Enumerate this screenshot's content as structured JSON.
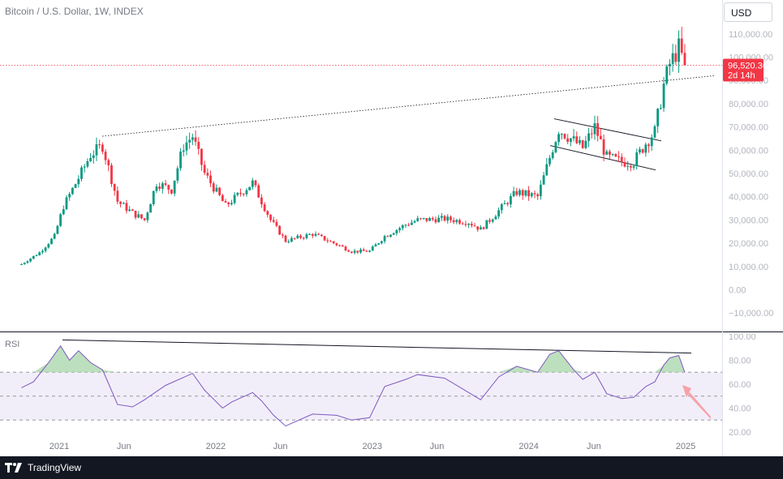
{
  "header": {
    "title": "Bitcoin / U.S. Dollar, 1W, INDEX",
    "currency": "USD"
  },
  "price_label": {
    "price": "96,520.36",
    "countdown": "2d 14h"
  },
  "rsi_label": "RSI",
  "footer": {
    "brand": "TradingView"
  },
  "colors": {
    "up": "#089981",
    "down": "#f23645",
    "rsi_line": "#7e57c2",
    "rsi_band": "#ede7f6",
    "price_line": "#f23645",
    "arrow": "#f7a1a9"
  },
  "chart_data": [
    {
      "type": "candlestick",
      "title": "Bitcoin / U.S. Dollar, 1W, INDEX",
      "x_ticks": [
        "2021",
        "Jun",
        "2022",
        "Jun",
        "2023",
        "Jun",
        "2024",
        "Jun",
        "2025"
      ],
      "y_ticks": [
        "110,000.00",
        "100,000.00",
        "90,000.00",
        "80,000.00",
        "70,000.00",
        "60,000.00",
        "50,000.00",
        "40,000.00",
        "30,000.00",
        "20,000.00",
        "10,000.00",
        "0.00",
        "−10,000.00"
      ],
      "ylim": [
        -10000,
        110000
      ],
      "last_price": 96520.36,
      "anchors": [
        [
          "2020-10-05",
          11000
        ],
        [
          "2020-11-16",
          16000
        ],
        [
          "2020-12-21",
          23000
        ],
        [
          "2021-01-11",
          36000
        ],
        [
          "2021-02-15",
          48000
        ],
        [
          "2021-03-15",
          58000
        ],
        [
          "2021-04-12",
          62000
        ],
        [
          "2021-05-17",
          38000
        ],
        [
          "2021-06-21",
          33000
        ],
        [
          "2021-07-19",
          30000
        ],
        [
          "2021-08-16",
          46000
        ],
        [
          "2021-09-20",
          43000
        ],
        [
          "2021-10-18",
          62000
        ],
        [
          "2021-11-08",
          66000
        ],
        [
          "2021-12-06",
          50000
        ],
        [
          "2022-01-03",
          42000
        ],
        [
          "2022-01-24",
          36000
        ],
        [
          "2022-03-28",
          46000
        ],
        [
          "2022-05-09",
          30000
        ],
        [
          "2022-06-13",
          21000
        ],
        [
          "2022-08-15",
          24000
        ],
        [
          "2022-10-10",
          19500
        ],
        [
          "2022-11-14",
          16500
        ],
        [
          "2022-12-26",
          16600
        ],
        [
          "2023-01-30",
          23000
        ],
        [
          "2023-03-20",
          28000
        ],
        [
          "2023-04-17",
          30000
        ],
        [
          "2023-06-19",
          30500
        ],
        [
          "2023-08-14",
          29000
        ],
        [
          "2023-09-11",
          26000
        ],
        [
          "2023-10-23",
          34000
        ],
        [
          "2023-12-04",
          42000
        ],
        [
          "2024-01-22",
          40000
        ],
        [
          "2024-02-26",
          61000
        ],
        [
          "2024-03-11",
          69000
        ],
        [
          "2024-04-15",
          64000
        ],
        [
          "2024-05-06",
          61000
        ],
        [
          "2024-06-03",
          70000
        ],
        [
          "2024-07-01",
          57000
        ],
        [
          "2024-08-05",
          55000
        ],
        [
          "2024-09-02",
          55000
        ],
        [
          "2024-09-30",
          63000
        ],
        [
          "2024-10-21",
          68000
        ],
        [
          "2024-11-11",
          88000
        ],
        [
          "2024-11-25",
          97000
        ],
        [
          "2024-12-16",
          104000
        ],
        [
          "2024-12-30",
          96520
        ]
      ]
    },
    {
      "type": "line",
      "title": "RSI",
      "y_ticks": [
        "100.00",
        "80.00",
        "60.00",
        "40.00",
        "20.00"
      ],
      "ylim": [
        20,
        100
      ],
      "band": [
        30,
        70
      ],
      "midline": 50,
      "points": [
        [
          "2020-10-05",
          57
        ],
        [
          "2020-11-02",
          62
        ],
        [
          "2020-12-07",
          78
        ],
        [
          "2021-01-04",
          92
        ],
        [
          "2021-01-25",
          80
        ],
        [
          "2021-02-15",
          88
        ],
        [
          "2021-03-15",
          78
        ],
        [
          "2021-04-12",
          72
        ],
        [
          "2021-05-17",
          43
        ],
        [
          "2021-06-21",
          41
        ],
        [
          "2021-07-19",
          47
        ],
        [
          "2021-09-06",
          59
        ],
        [
          "2021-11-08",
          69
        ],
        [
          "2021-12-06",
          55
        ],
        [
          "2022-01-17",
          40
        ],
        [
          "2022-02-07",
          45
        ],
        [
          "2022-03-28",
          53
        ],
        [
          "2022-04-18",
          46
        ],
        [
          "2022-05-16",
          34
        ],
        [
          "2022-06-13",
          25
        ],
        [
          "2022-08-15",
          35
        ],
        [
          "2022-10-10",
          34
        ],
        [
          "2022-11-14",
          30
        ],
        [
          "2022-12-26",
          32
        ],
        [
          "2023-01-30",
          58
        ],
        [
          "2023-03-20",
          64
        ],
        [
          "2023-04-17",
          68
        ],
        [
          "2023-06-19",
          65
        ],
        [
          "2023-08-14",
          53
        ],
        [
          "2023-09-11",
          47
        ],
        [
          "2023-10-23",
          66
        ],
        [
          "2023-12-04",
          75
        ],
        [
          "2024-01-22",
          70
        ],
        [
          "2024-02-19",
          85
        ],
        [
          "2024-03-11",
          88
        ],
        [
          "2024-04-15",
          72
        ],
        [
          "2024-05-06",
          64
        ],
        [
          "2024-06-03",
          70
        ],
        [
          "2024-07-01",
          52
        ],
        [
          "2024-08-05",
          48
        ],
        [
          "2024-09-02",
          49
        ],
        [
          "2024-09-30",
          58
        ],
        [
          "2024-10-21",
          62
        ],
        [
          "2024-11-11",
          76
        ],
        [
          "2024-11-25",
          82
        ],
        [
          "2024-12-16",
          84
        ],
        [
          "2024-12-30",
          70
        ]
      ]
    }
  ]
}
